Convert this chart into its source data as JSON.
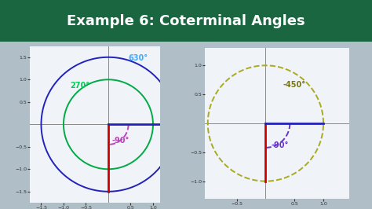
{
  "title": "Example 6: Coterminal Angles",
  "title_bg_top": "#1a6640",
  "title_bg_bot": "#145030",
  "title_color": "#ffffff",
  "title_fontsize": 13,
  "fig_bg": "#b0bec8",
  "plot_bg": "#f0f4f8",
  "left_plot": {
    "xlim": [
      -1.75,
      1.15
    ],
    "ylim": [
      -1.75,
      1.75
    ],
    "xticks": [
      -1.5,
      -1.0,
      -0.5,
      0.5,
      1.0
    ],
    "yticks": [
      -1.5,
      -1.0,
      -0.5,
      0.5,
      1.0,
      1.5
    ],
    "circle_big_r": 1.5,
    "circle_big_color": "#2222bb",
    "circle_small_r": 1.0,
    "circle_small_color": "#00aa44",
    "arc_r": 0.45,
    "arc_color": "#bb44bb",
    "angle_630_label": "630°",
    "angle_630_color": "#44aaff",
    "angle_270_label": "270°",
    "angle_270_color": "#00cc55",
    "angle_neg90_label": "-90°",
    "angle_neg90_color": "#bb44bb",
    "terminal_ray_color": "#cc0000",
    "initial_ray_color": "#2222bb",
    "axis_color": "#888888"
  },
  "right_plot": {
    "xlim": [
      -1.05,
      1.45
    ],
    "ylim": [
      -1.3,
      1.3
    ],
    "xticks": [
      -0.5,
      0.5,
      1.0
    ],
    "yticks": [
      -1.0,
      -0.5,
      0.5,
      1.0
    ],
    "circle_r": 1.0,
    "circle_color": "#aaaa22",
    "arc_r": 0.42,
    "arc_color": "#6633cc",
    "angle_neg450_label": "-450°",
    "angle_neg450_color": "#777711",
    "angle_neg90_label": "-90°",
    "angle_neg90_color": "#6633cc",
    "terminal_ray_color": "#cc0000",
    "initial_ray_color": "#2222bb",
    "axis_color": "#888888"
  }
}
